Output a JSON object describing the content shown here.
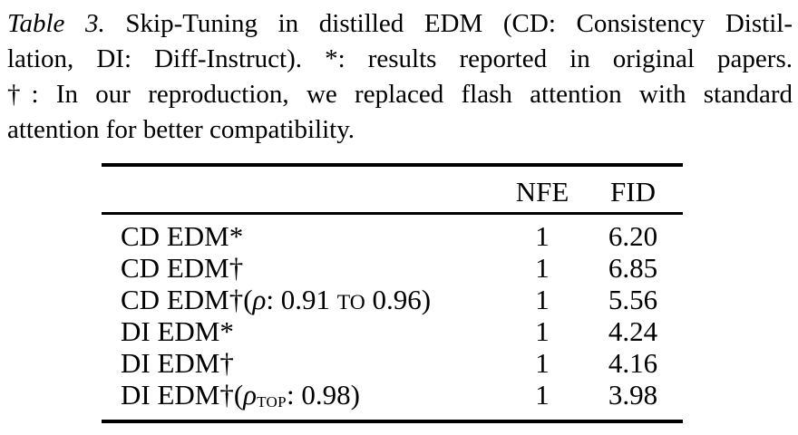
{
  "caption": {
    "label_italic": "Table 3.",
    "line1_rest": " Skip-Tuning in distilled EDM (CD: Consistency Distil-",
    "line2": "lation, DI: Diff-Instruct). *: results reported in original papers.",
    "line3": "†: In our reproduction, we replaced flash attention with standard",
    "line4": "attention for better compatibility."
  },
  "table": {
    "headers": {
      "model": "",
      "nfe": "NFE",
      "fid": "FID"
    },
    "rows": [
      {
        "label_pre": "CD EDM*",
        "rho": "",
        "rho_sub": "",
        "label_mid": "",
        "sc": "",
        "label_post": "",
        "nfe": "1",
        "fid": "6.20"
      },
      {
        "label_pre": "CD EDM†",
        "rho": "",
        "rho_sub": "",
        "label_mid": "",
        "sc": "",
        "label_post": "",
        "nfe": "1",
        "fid": "6.85"
      },
      {
        "label_pre": "CD EDM†(",
        "rho": "ρ",
        "rho_sub": "",
        "label_mid": ": 0.91 ",
        "sc": "TO",
        "label_post": " 0.96)",
        "nfe": "1",
        "fid": "5.56"
      },
      {
        "label_pre": "DI EDM*",
        "rho": "",
        "rho_sub": "",
        "label_mid": "",
        "sc": "",
        "label_post": "",
        "nfe": "1",
        "fid": "4.24"
      },
      {
        "label_pre": "DI EDM†",
        "rho": "",
        "rho_sub": "",
        "label_mid": "",
        "sc": "",
        "label_post": "",
        "nfe": "1",
        "fid": "4.16"
      },
      {
        "label_pre": "DI EDM†(",
        "rho": "ρ",
        "rho_sub": "TOP",
        "label_mid": ": 0.98)",
        "sc": "",
        "label_post": "",
        "nfe": "1",
        "fid": "3.98"
      }
    ]
  }
}
